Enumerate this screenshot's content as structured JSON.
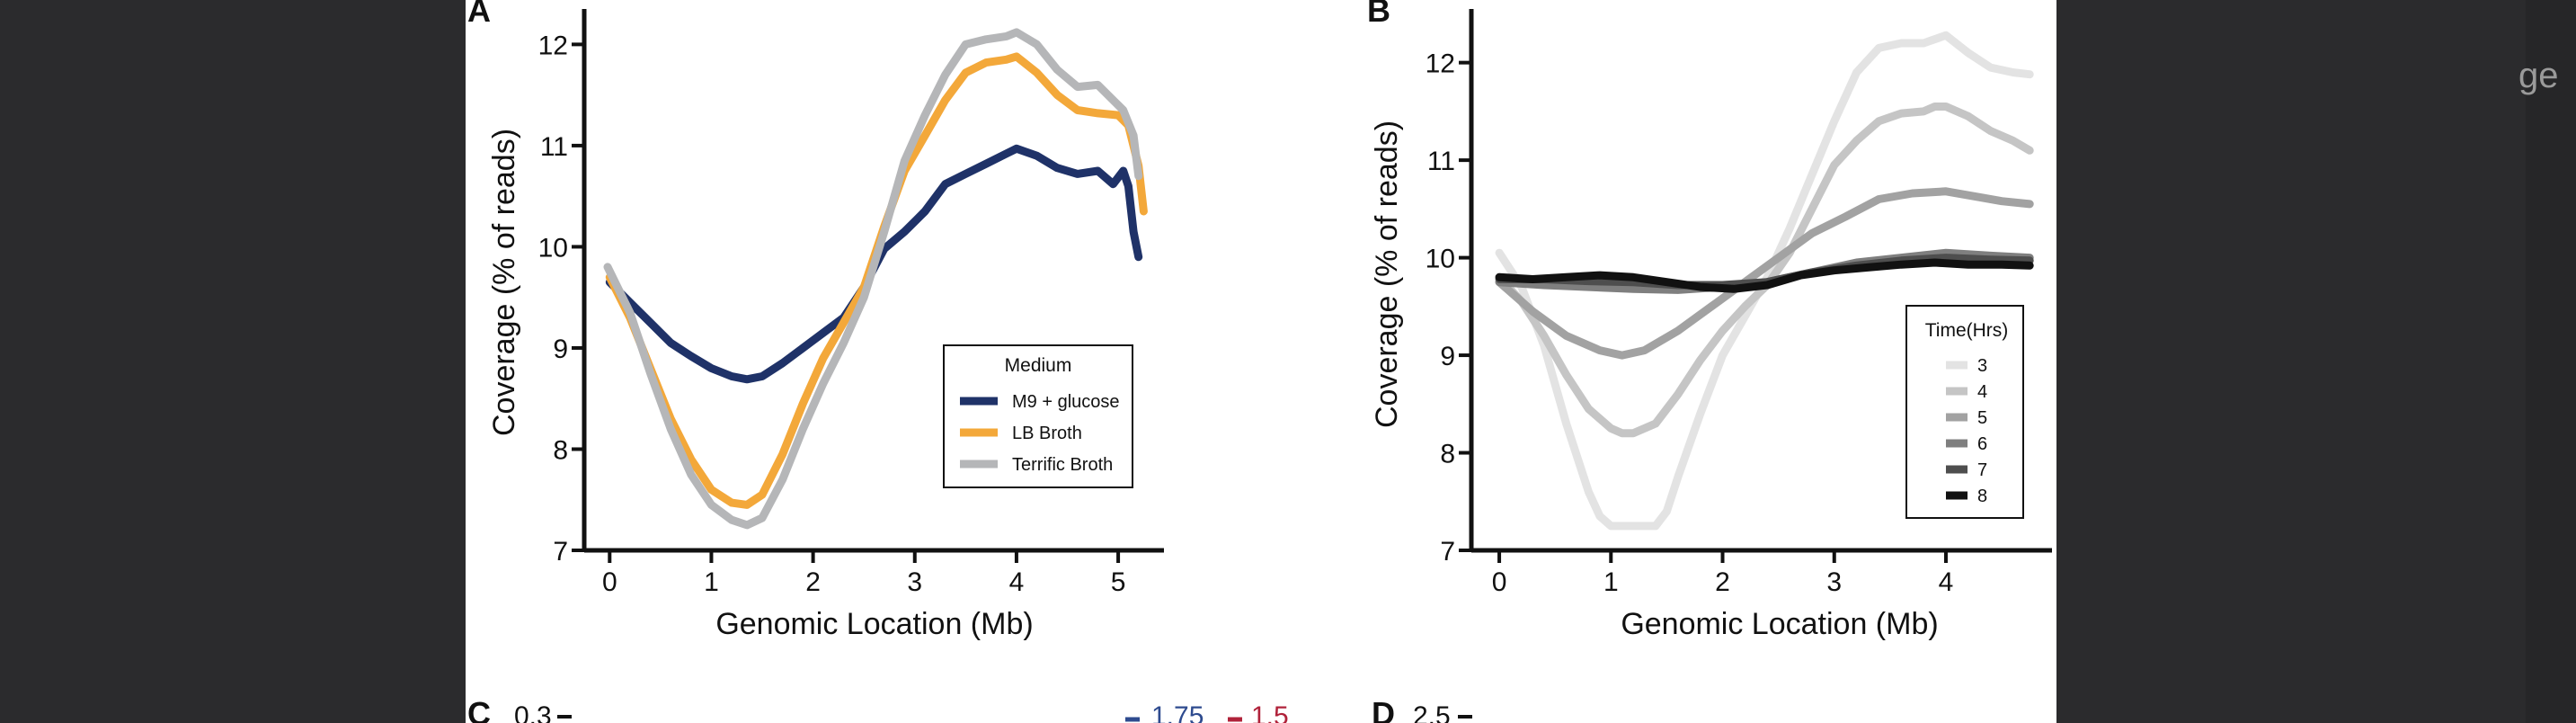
{
  "page": {
    "side_fragment": "ge",
    "bottom_labels": {
      "panel_c": "C",
      "panel_c_tick": "0.3",
      "legend_val_1": "1.75",
      "legend_val_2": "1.5",
      "panel_d": "D",
      "panel_d_tick": "2.5"
    },
    "colors": {
      "background": "#2b2b2d",
      "page": "#ffffff",
      "val_1": "#2e4b8f",
      "val_2": "#b0223a"
    }
  },
  "chart_data": [
    {
      "panel": "A",
      "type": "line",
      "xlabel": "Genomic Location (Mb)",
      "ylabel": "Coverage (% of reads)",
      "xlim": [
        -0.25,
        5.45
      ],
      "ylim": [
        7,
        12.35
      ],
      "xticks": [
        0,
        1,
        2,
        3,
        4,
        5
      ],
      "yticks": [
        7,
        8,
        9,
        10,
        11,
        12
      ],
      "legend": {
        "title": "Medium",
        "placement": "lower-right"
      },
      "series": [
        {
          "name": "M9 + glucose",
          "color": "#1f3268",
          "x": [
            0,
            0.2,
            0.4,
            0.6,
            0.8,
            1.0,
            1.2,
            1.35,
            1.5,
            1.7,
            1.9,
            2.1,
            2.3,
            2.5,
            2.7,
            2.9,
            3.1,
            3.3,
            3.5,
            3.7,
            3.9,
            4.0,
            4.2,
            4.4,
            4.6,
            4.8,
            4.95,
            5.05,
            5.1,
            5.15,
            5.2
          ],
          "y": [
            9.65,
            9.45,
            9.25,
            9.05,
            8.92,
            8.8,
            8.72,
            8.69,
            8.72,
            8.85,
            9.0,
            9.15,
            9.3,
            9.6,
            9.98,
            10.15,
            10.35,
            10.62,
            10.72,
            10.82,
            10.92,
            10.97,
            10.9,
            10.78,
            10.72,
            10.75,
            10.62,
            10.75,
            10.6,
            10.15,
            9.9
          ]
        },
        {
          "name": "LB Broth",
          "color": "#f3a83a",
          "x": [
            0,
            0.2,
            0.4,
            0.6,
            0.8,
            1.0,
            1.2,
            1.35,
            1.5,
            1.7,
            1.9,
            2.1,
            2.3,
            2.5,
            2.7,
            2.9,
            3.1,
            3.3,
            3.5,
            3.7,
            3.9,
            4.0,
            4.2,
            4.4,
            4.6,
            4.8,
            5.0,
            5.1,
            5.2,
            5.25
          ],
          "y": [
            9.7,
            9.3,
            8.8,
            8.3,
            7.9,
            7.6,
            7.47,
            7.45,
            7.55,
            7.95,
            8.45,
            8.9,
            9.25,
            9.6,
            10.2,
            10.75,
            11.1,
            11.45,
            11.72,
            11.82,
            11.85,
            11.88,
            11.72,
            11.5,
            11.35,
            11.32,
            11.3,
            11.2,
            10.8,
            10.35
          ]
        },
        {
          "name": "Terrific Broth",
          "color": "#b5b6b8",
          "x": [
            -0.02,
            0.2,
            0.4,
            0.6,
            0.8,
            1.0,
            1.2,
            1.35,
            1.5,
            1.7,
            1.9,
            2.1,
            2.3,
            2.5,
            2.7,
            2.9,
            3.1,
            3.3,
            3.5,
            3.7,
            3.9,
            4.0,
            4.2,
            4.4,
            4.6,
            4.8,
            4.95,
            5.05,
            5.15,
            5.2
          ],
          "y": [
            9.8,
            9.35,
            8.75,
            8.2,
            7.75,
            7.45,
            7.3,
            7.25,
            7.32,
            7.7,
            8.2,
            8.65,
            9.05,
            9.5,
            10.15,
            10.85,
            11.3,
            11.7,
            12.0,
            12.05,
            12.08,
            12.12,
            12.0,
            11.75,
            11.58,
            11.6,
            11.45,
            11.35,
            11.1,
            10.7
          ]
        }
      ]
    },
    {
      "panel": "B",
      "type": "line",
      "xlabel": "Genomic Location (Mb)",
      "ylabel": "Coverage (% of reads)",
      "xlim": [
        -0.25,
        4.95
      ],
      "ylim": [
        7,
        12.55
      ],
      "xticks": [
        0,
        1,
        2,
        3,
        4
      ],
      "yticks": [
        7,
        8,
        9,
        10,
        11,
        12
      ],
      "legend": {
        "title": "Time(Hrs)",
        "placement": "lower-right"
      },
      "series": [
        {
          "name": "3",
          "color": "#e3e3e3",
          "x": [
            0,
            0.2,
            0.4,
            0.6,
            0.8,
            0.9,
            1.0,
            1.2,
            1.4,
            1.5,
            1.6,
            1.8,
            2.0,
            2.2,
            2.4,
            2.6,
            2.8,
            3.0,
            3.2,
            3.4,
            3.6,
            3.8,
            4.0,
            4.2,
            4.4,
            4.6,
            4.75
          ],
          "y": [
            10.05,
            9.7,
            9.1,
            8.3,
            7.6,
            7.35,
            7.25,
            7.25,
            7.25,
            7.4,
            7.75,
            8.4,
            9.0,
            9.4,
            9.8,
            10.3,
            10.85,
            11.4,
            11.9,
            12.15,
            12.2,
            12.2,
            12.28,
            12.1,
            11.95,
            11.9,
            11.88
          ]
        },
        {
          "name": "4",
          "color": "#c5c5c5",
          "x": [
            0,
            0.2,
            0.4,
            0.6,
            0.8,
            1.0,
            1.1,
            1.2,
            1.4,
            1.6,
            1.8,
            2.0,
            2.2,
            2.4,
            2.6,
            2.8,
            3.0,
            3.2,
            3.4,
            3.6,
            3.8,
            3.9,
            4.0,
            4.2,
            4.4,
            4.6,
            4.75
          ],
          "y": [
            9.8,
            9.55,
            9.2,
            8.8,
            8.45,
            8.25,
            8.2,
            8.2,
            8.3,
            8.6,
            8.95,
            9.25,
            9.5,
            9.72,
            10.05,
            10.5,
            10.95,
            11.2,
            11.4,
            11.48,
            11.5,
            11.55,
            11.55,
            11.45,
            11.3,
            11.2,
            11.1
          ]
        },
        {
          "name": "5",
          "color": "#a2a2a2",
          "x": [
            0,
            0.3,
            0.6,
            0.9,
            1.1,
            1.3,
            1.6,
            1.9,
            2.2,
            2.5,
            2.8,
            3.1,
            3.4,
            3.7,
            4.0,
            4.3,
            4.5,
            4.75
          ],
          "y": [
            9.75,
            9.45,
            9.2,
            9.05,
            9.0,
            9.05,
            9.25,
            9.5,
            9.75,
            10.0,
            10.25,
            10.42,
            10.6,
            10.66,
            10.68,
            10.62,
            10.58,
            10.55
          ]
        },
        {
          "name": "6",
          "color": "#7f7f7f",
          "x": [
            0,
            0.4,
            0.8,
            1.2,
            1.6,
            2.0,
            2.4,
            2.8,
            3.2,
            3.6,
            4.0,
            4.4,
            4.75
          ],
          "y": [
            9.75,
            9.72,
            9.7,
            9.68,
            9.67,
            9.7,
            9.75,
            9.85,
            9.95,
            10.0,
            10.05,
            10.02,
            10.0
          ]
        },
        {
          "name": "7",
          "color": "#4e4e4e",
          "x": [
            0,
            0.4,
            0.8,
            1.2,
            1.6,
            2.0,
            2.4,
            2.8,
            3.2,
            3.6,
            4.0,
            4.4,
            4.75
          ],
          "y": [
            9.78,
            9.78,
            9.76,
            9.75,
            9.72,
            9.72,
            9.75,
            9.85,
            9.92,
            9.97,
            10.0,
            9.98,
            9.97
          ]
        },
        {
          "name": "8",
          "color": "#111111",
          "x": [
            0,
            0.3,
            0.6,
            0.9,
            1.2,
            1.5,
            1.8,
            2.1,
            2.4,
            2.7,
            3.0,
            3.3,
            3.6,
            3.9,
            4.2,
            4.5,
            4.75
          ],
          "y": [
            9.8,
            9.78,
            9.8,
            9.82,
            9.8,
            9.75,
            9.7,
            9.68,
            9.72,
            9.82,
            9.87,
            9.9,
            9.93,
            9.95,
            9.93,
            9.93,
            9.92
          ]
        }
      ]
    }
  ]
}
